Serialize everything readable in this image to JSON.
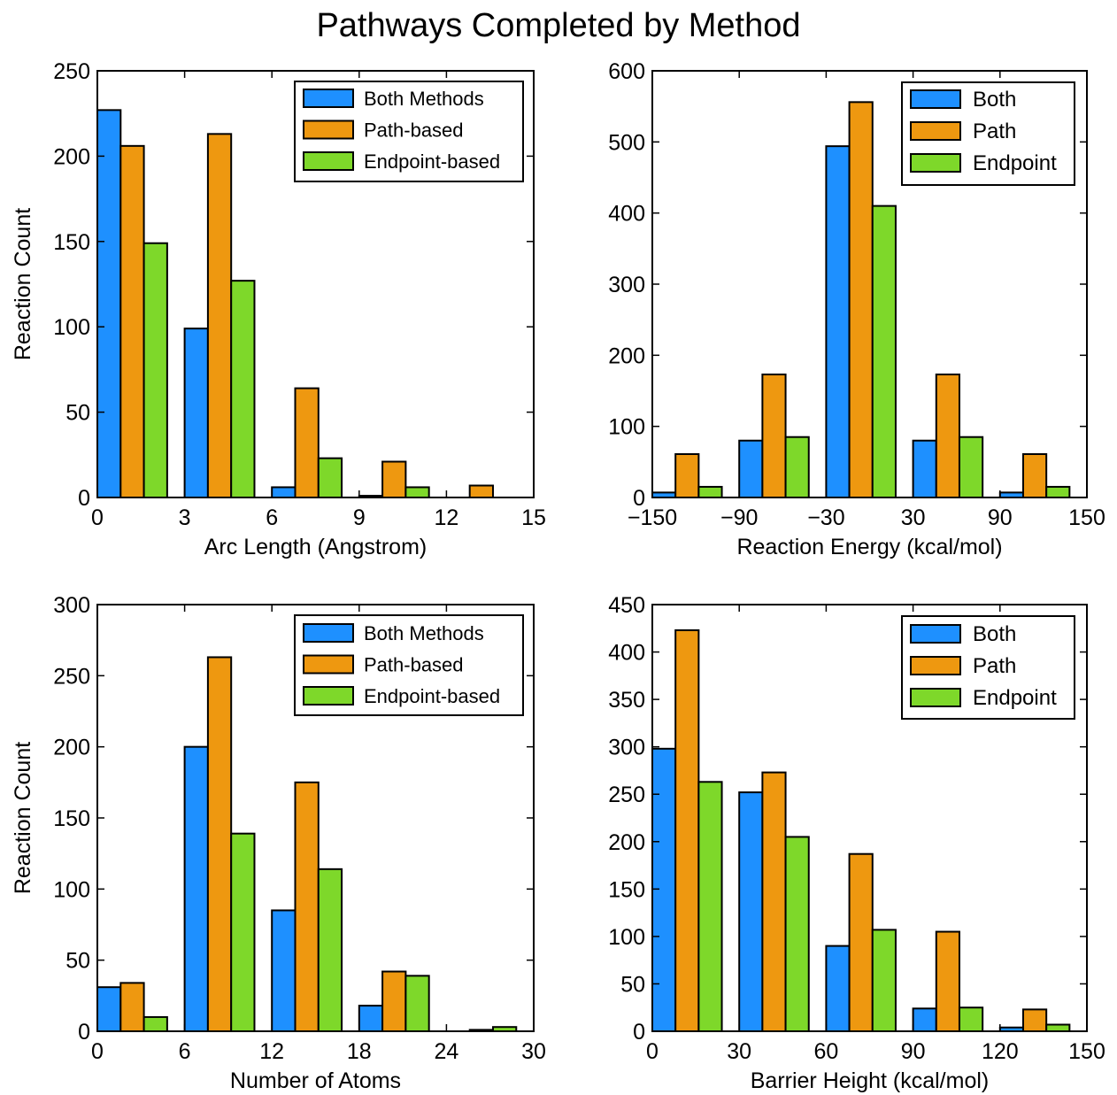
{
  "figure": {
    "title": "Pathways Completed by Method"
  },
  "chart_data": [
    {
      "type": "bar",
      "xlabel": "Arc Length (Angstrom)",
      "ylabel": "Reaction Count",
      "xlim": [
        0,
        15
      ],
      "ylim": [
        0,
        250
      ],
      "xticks": [
        0,
        3,
        6,
        9,
        12,
        15
      ],
      "yticks": [
        0,
        50,
        100,
        150,
        200,
        250
      ],
      "x_tick_labels": [
        "0",
        "3",
        "6",
        "9",
        "12",
        "15"
      ],
      "y_tick_labels": [
        "0",
        "50",
        "100",
        "150",
        "200",
        "250"
      ],
      "bin_edges": [
        0,
        3,
        6,
        9,
        12,
        15
      ],
      "legend": "top-right",
      "grid": false,
      "series": [
        {
          "name": "Both Methods",
          "color": "#1e90ff",
          "values": [
            227,
            99,
            6,
            1,
            0
          ]
        },
        {
          "name": "Path-based",
          "color": "#ee9810",
          "values": [
            206,
            213,
            64,
            21,
            7
          ]
        },
        {
          "name": "Endpoint-based",
          "color": "#7ed82a",
          "values": [
            149,
            127,
            23,
            6,
            0
          ]
        }
      ]
    },
    {
      "type": "bar",
      "xlabel": "Reaction Energy (kcal/mol)",
      "ylabel": "",
      "xlim": [
        -150,
        150
      ],
      "ylim": [
        0,
        600
      ],
      "xticks": [
        -150,
        -90,
        -30,
        30,
        90,
        150
      ],
      "yticks": [
        0,
        100,
        200,
        300,
        400,
        500,
        600
      ],
      "x_tick_labels": [
        "−150",
        "−90",
        "−30",
        "30",
        "90",
        "150"
      ],
      "y_tick_labels": [
        "0",
        "100",
        "200",
        "300",
        "400",
        "500",
        "600"
      ],
      "bin_edges": [
        -150,
        -90,
        -30,
        30,
        90,
        150
      ],
      "legend": "top-right",
      "grid": false,
      "series": [
        {
          "name": "Both",
          "color": "#1e90ff",
          "values": [
            7,
            80,
            494,
            80,
            7
          ]
        },
        {
          "name": "Path",
          "color": "#ee9810",
          "values": [
            61,
            173,
            556,
            173,
            61
          ]
        },
        {
          "name": "Endpoint",
          "color": "#7ed82a",
          "values": [
            15,
            85,
            410,
            85,
            15
          ]
        }
      ]
    },
    {
      "type": "bar",
      "xlabel": "Number of Atoms",
      "ylabel": "Reaction Count",
      "xlim": [
        0,
        30
      ],
      "ylim": [
        0,
        300
      ],
      "xticks": [
        0,
        6,
        12,
        18,
        24,
        30
      ],
      "yticks": [
        0,
        50,
        100,
        150,
        200,
        250,
        300
      ],
      "x_tick_labels": [
        "0",
        "6",
        "12",
        "18",
        "24",
        "30"
      ],
      "y_tick_labels": [
        "0",
        "50",
        "100",
        "150",
        "200",
        "250",
        "300"
      ],
      "bin_edges": [
        0,
        6,
        12,
        18,
        24,
        30
      ],
      "legend": "top-right",
      "grid": false,
      "series": [
        {
          "name": "Both Methods",
          "color": "#1e90ff",
          "values": [
            31,
            200,
            85,
            18,
            0
          ]
        },
        {
          "name": "Path-based",
          "color": "#ee9810",
          "values": [
            34,
            263,
            175,
            42,
            1
          ]
        },
        {
          "name": "Endpoint-based",
          "color": "#7ed82a",
          "values": [
            10,
            139,
            114,
            39,
            3
          ]
        }
      ]
    },
    {
      "type": "bar",
      "xlabel": "Barrier Height (kcal/mol)",
      "ylabel": "",
      "xlim": [
        0,
        150
      ],
      "ylim": [
        0,
        450
      ],
      "xticks": [
        0,
        30,
        60,
        90,
        120,
        150
      ],
      "yticks": [
        0,
        50,
        100,
        150,
        200,
        250,
        300,
        350,
        400,
        450
      ],
      "x_tick_labels": [
        "0",
        "30",
        "60",
        "90",
        "120",
        "150"
      ],
      "y_tick_labels": [
        "0",
        "50",
        "100",
        "150",
        "200",
        "250",
        "300",
        "350",
        "400",
        "450"
      ],
      "bin_edges": [
        0,
        30,
        60,
        90,
        120,
        150
      ],
      "legend": "top-right",
      "grid": false,
      "series": [
        {
          "name": "Both",
          "color": "#1e90ff",
          "values": [
            298,
            252,
            90,
            24,
            4
          ]
        },
        {
          "name": "Path",
          "color": "#ee9810",
          "values": [
            423,
            273,
            187,
            105,
            23
          ]
        },
        {
          "name": "Endpoint",
          "color": "#7ed82a",
          "values": [
            263,
            205,
            107,
            25,
            7
          ]
        }
      ]
    }
  ]
}
